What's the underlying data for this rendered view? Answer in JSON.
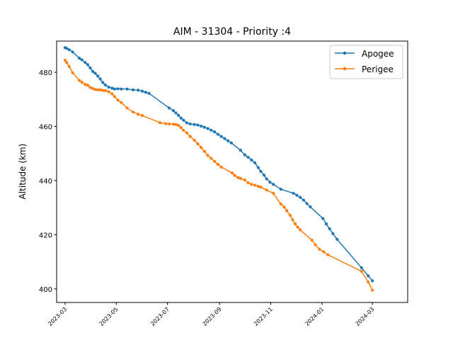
{
  "chart_data": {
    "type": "line",
    "title": "AIM - 31304 - Priority :4",
    "xlabel": "",
    "ylabel": "Altitude (km)",
    "ylim": [
      395,
      491.5
    ],
    "xlim": [
      "2023-02-19",
      "2024-04-12"
    ],
    "y_ticks": [
      400,
      420,
      440,
      460,
      480
    ],
    "x_ticks": [
      "2023-03",
      "2023-05",
      "2023-07",
      "2023-09",
      "2023-11",
      "2024-01",
      "2024-03"
    ],
    "x_tick_labels": [
      "2023-03",
      "2023-05",
      "2023-07",
      "2023-09",
      "2023-11",
      "2024-01",
      "2024-03"
    ],
    "grid": false,
    "legend_position": "top-right",
    "series": [
      {
        "name": "Apogee",
        "color": "#1f77b4",
        "marker": "circle",
        "points": [
          [
            "2023-03-01",
            489.1
          ],
          [
            "2023-03-03",
            488.8
          ],
          [
            "2023-03-06",
            488.3
          ],
          [
            "2023-03-10",
            487.5
          ],
          [
            "2023-03-18",
            485.2
          ],
          [
            "2023-03-21",
            484.6
          ],
          [
            "2023-03-25",
            483.6
          ],
          [
            "2023-03-28",
            482.8
          ],
          [
            "2023-03-31",
            481.6
          ],
          [
            "2023-04-03",
            480.3
          ],
          [
            "2023-04-06",
            479.6
          ],
          [
            "2023-04-09",
            478.6
          ],
          [
            "2023-04-12",
            477.5
          ],
          [
            "2023-04-15",
            476.2
          ],
          [
            "2023-04-18",
            475.3
          ],
          [
            "2023-04-22",
            474.5
          ],
          [
            "2023-04-26",
            474.1
          ],
          [
            "2023-04-29",
            473.8
          ],
          [
            "2023-05-03",
            473.9
          ],
          [
            "2023-05-07",
            473.8
          ],
          [
            "2023-05-14",
            473.8
          ],
          [
            "2023-05-21",
            473.5
          ],
          [
            "2023-05-27",
            473.4
          ],
          [
            "2023-06-01",
            473.0
          ],
          [
            "2023-06-05",
            472.6
          ],
          [
            "2023-06-09",
            472.2
          ],
          [
            "2023-07-03",
            466.8
          ],
          [
            "2023-07-08",
            465.8
          ],
          [
            "2023-07-11",
            465.0
          ],
          [
            "2023-07-14",
            464.1
          ],
          [
            "2023-07-17",
            463.1
          ],
          [
            "2023-07-20",
            462.3
          ],
          [
            "2023-07-24",
            461.3
          ],
          [
            "2023-07-28",
            460.9
          ],
          [
            "2023-08-02",
            460.7
          ],
          [
            "2023-08-06",
            460.5
          ],
          [
            "2023-08-10",
            460.1
          ],
          [
            "2023-08-14",
            459.7
          ],
          [
            "2023-08-18",
            459.2
          ],
          [
            "2023-08-22",
            458.6
          ],
          [
            "2023-08-26",
            458.0
          ],
          [
            "2023-08-30",
            457.1
          ],
          [
            "2023-09-03",
            456.3
          ],
          [
            "2023-09-07",
            455.5
          ],
          [
            "2023-09-11",
            454.7
          ],
          [
            "2023-09-15",
            453.9
          ],
          [
            "2023-09-26",
            451.2
          ],
          [
            "2023-10-01",
            449.5
          ],
          [
            "2023-10-05",
            448.6
          ],
          [
            "2023-10-09",
            447.6
          ],
          [
            "2023-10-13",
            446.6
          ],
          [
            "2023-10-17",
            444.8
          ],
          [
            "2023-10-20",
            443.4
          ],
          [
            "2023-10-24",
            442.0
          ],
          [
            "2023-10-27",
            440.6
          ],
          [
            "2023-10-31",
            439.4
          ],
          [
            "2023-11-04",
            438.6
          ],
          [
            "2023-11-13",
            436.8
          ],
          [
            "2023-11-28",
            435.3
          ],
          [
            "2023-12-02",
            434.6
          ],
          [
            "2023-12-06",
            433.8
          ],
          [
            "2023-12-10",
            432.8
          ],
          [
            "2023-12-14",
            431.5
          ],
          [
            "2023-12-18",
            430.3
          ],
          [
            "2024-01-02",
            426.0
          ],
          [
            "2024-01-06",
            424.0
          ],
          [
            "2024-01-10",
            422.2
          ],
          [
            "2024-01-14",
            420.4
          ],
          [
            "2024-01-19",
            418.3
          ],
          [
            "2024-02-17",
            407.8
          ],
          [
            "2024-02-25",
            404.8
          ],
          [
            "2024-03-01",
            403.0
          ]
        ]
      },
      {
        "name": "Perigee",
        "color": "#ff7f0e",
        "marker": "circle",
        "points": [
          [
            "2023-03-01",
            484.4
          ],
          [
            "2023-03-03",
            483.6
          ],
          [
            "2023-03-06",
            482.1
          ],
          [
            "2023-03-10",
            479.8
          ],
          [
            "2023-03-18",
            477.0
          ],
          [
            "2023-03-21",
            476.3
          ],
          [
            "2023-03-25",
            475.5
          ],
          [
            "2023-03-28",
            475.2
          ],
          [
            "2023-03-31",
            474.4
          ],
          [
            "2023-04-03",
            474.0
          ],
          [
            "2023-04-06",
            473.6
          ],
          [
            "2023-04-09",
            473.5
          ],
          [
            "2023-04-12",
            473.5
          ],
          [
            "2023-04-15",
            473.3
          ],
          [
            "2023-04-18",
            473.2
          ],
          [
            "2023-04-22",
            472.8
          ],
          [
            "2023-04-26",
            472.0
          ],
          [
            "2023-04-29",
            471.0
          ],
          [
            "2023-05-03",
            469.7
          ],
          [
            "2023-05-07",
            468.8
          ],
          [
            "2023-05-14",
            466.8
          ],
          [
            "2023-05-21",
            465.3
          ],
          [
            "2023-05-27",
            464.5
          ],
          [
            "2023-06-01",
            464.0
          ],
          [
            "2023-06-22",
            461.4
          ],
          [
            "2023-06-29",
            461.0
          ],
          [
            "2023-07-03",
            460.9
          ],
          [
            "2023-07-08",
            460.8
          ],
          [
            "2023-07-11",
            460.7
          ],
          [
            "2023-07-14",
            460.4
          ],
          [
            "2023-07-17",
            459.6
          ],
          [
            "2023-07-20",
            458.6
          ],
          [
            "2023-07-24",
            457.6
          ],
          [
            "2023-07-28",
            456.3
          ],
          [
            "2023-08-02",
            454.9
          ],
          [
            "2023-08-06",
            453.6
          ],
          [
            "2023-08-10",
            452.2
          ],
          [
            "2023-08-14",
            450.8
          ],
          [
            "2023-08-18",
            449.3
          ],
          [
            "2023-08-22",
            448.2
          ],
          [
            "2023-08-26",
            447.1
          ],
          [
            "2023-08-30",
            446.0
          ],
          [
            "2023-09-03",
            445.0
          ],
          [
            "2023-09-16",
            442.8
          ],
          [
            "2023-09-19",
            441.9
          ],
          [
            "2023-09-23",
            441.1
          ],
          [
            "2023-09-26",
            440.8
          ],
          [
            "2023-10-01",
            440.2
          ],
          [
            "2023-10-05",
            439.2
          ],
          [
            "2023-10-09",
            438.6
          ],
          [
            "2023-10-13",
            438.3
          ],
          [
            "2023-10-17",
            437.9
          ],
          [
            "2023-10-20",
            437.6
          ],
          [
            "2023-10-27",
            436.5
          ],
          [
            "2023-11-04",
            435.3
          ],
          [
            "2023-11-13",
            431.3
          ],
          [
            "2023-11-17",
            430.2
          ],
          [
            "2023-11-20",
            428.9
          ],
          [
            "2023-11-24",
            427.2
          ],
          [
            "2023-11-27",
            425.5
          ],
          [
            "2023-11-30",
            424.0
          ],
          [
            "2023-12-03",
            422.8
          ],
          [
            "2023-12-06",
            421.8
          ],
          [
            "2023-12-20",
            418.0
          ],
          [
            "2023-12-24",
            416.3
          ],
          [
            "2023-12-29",
            414.6
          ],
          [
            "2024-01-03",
            413.7
          ],
          [
            "2024-01-08",
            412.6
          ],
          [
            "2024-02-17",
            406.5
          ],
          [
            "2024-02-25",
            402.5
          ],
          [
            "2024-03-01",
            399.5
          ]
        ]
      }
    ]
  }
}
